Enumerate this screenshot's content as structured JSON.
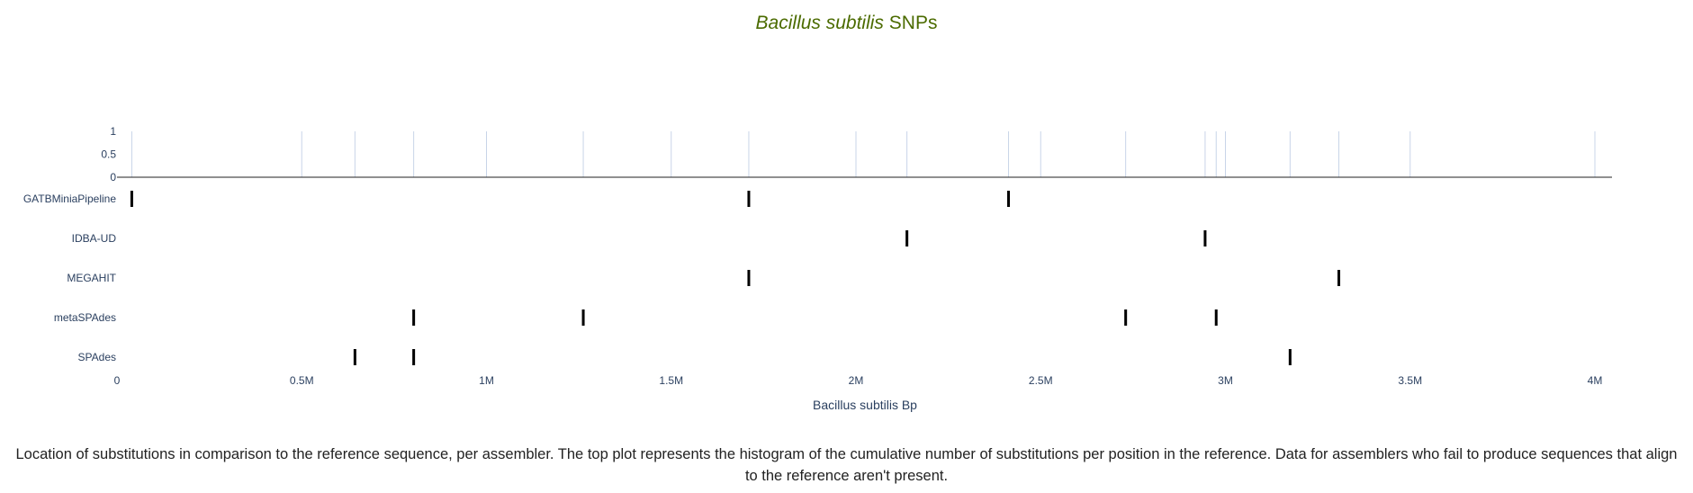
{
  "title": {
    "italic": "Bacillus subtilis",
    "rest": " SNPs"
  },
  "caption": "Location of substitutions in comparison to the reference sequence, per assembler. The top plot represents the histogram of the cumulative number of substitutions per position in the reference. Data for assemblers who fail to produce sequences that align to the reference aren't present.",
  "colors": {
    "title": "#4b6b00",
    "tick_text": "#2a3f5f",
    "marker": "#000000",
    "histogram_line": "#c8d4e8",
    "axis_line": "#222222"
  },
  "chart_data": {
    "type": "scatter",
    "xlabel": "Bacillus subtilis Bp",
    "xlim": [
      0,
      4000000
    ],
    "xticks": [
      {
        "value": 0,
        "label": "0"
      },
      {
        "value": 500000,
        "label": "0.5M"
      },
      {
        "value": 1000000,
        "label": "1M"
      },
      {
        "value": 1500000,
        "label": "1.5M"
      },
      {
        "value": 2000000,
        "label": "2M"
      },
      {
        "value": 2500000,
        "label": "2.5M"
      },
      {
        "value": 3000000,
        "label": "3M"
      },
      {
        "value": 3500000,
        "label": "3.5M"
      },
      {
        "value": 4000000,
        "label": "4M"
      }
    ],
    "histogram": {
      "ylim": [
        0,
        1
      ],
      "yticks": [
        {
          "value": 1,
          "label": "1"
        },
        {
          "value": 0.5,
          "label": "0.5"
        },
        {
          "value": 0,
          "label": "0"
        }
      ],
      "positions": [
        40000,
        500000,
        644000,
        803000,
        1000000,
        1262000,
        1500000,
        1710000,
        2000000,
        2138000,
        2413000,
        2500000,
        2730000,
        2945000,
        2975000,
        3000000,
        3175000,
        3307000,
        3500000,
        4000000
      ]
    },
    "series": [
      {
        "name": "GATBMiniaPipeline",
        "x": [
          40000,
          1710000,
          2413000
        ]
      },
      {
        "name": "IDBA-UD",
        "x": [
          2138000,
          2945000
        ]
      },
      {
        "name": "MEGAHIT",
        "x": [
          1710000,
          3307000
        ]
      },
      {
        "name": "metaSPAdes",
        "x": [
          803000,
          1262000,
          2730000,
          2975000
        ]
      },
      {
        "name": "SPAdes",
        "x": [
          644000,
          803000,
          3175000
        ]
      }
    ]
  }
}
